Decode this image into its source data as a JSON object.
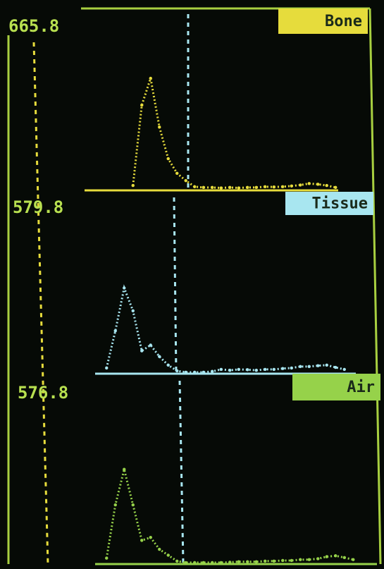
{
  "chart_data": [
    {
      "type": "line",
      "title": "Bone",
      "color": "#e6dc3c",
      "ylim": [
        0,
        665.8
      ],
      "yticks": [
        665.8
      ],
      "categories": [
        null,
        null,
        null,
        null,
        null,
        null,
        null,
        null,
        null,
        null,
        null,
        null,
        null,
        null,
        null,
        null,
        null,
        null,
        null,
        null,
        null,
        null,
        null,
        null,
        null,
        null,
        null,
        null,
        null,
        null,
        null,
        null
      ],
      "values": [
        null,
        null,
        null,
        null,
        null,
        20,
        350,
        460,
        260,
        130,
        70,
        40,
        15,
        12,
        12,
        10,
        12,
        10,
        12,
        12,
        15,
        14,
        15,
        18,
        22,
        28,
        25,
        20,
        12,
        null,
        null,
        null
      ]
    },
    {
      "type": "line",
      "title": "Tissue",
      "color": "#a8e6f0",
      "ylim": [
        0,
        579.8
      ],
      "yticks": [
        579.8
      ],
      "categories": [
        null,
        null,
        null,
        null,
        null,
        null,
        null,
        null,
        null,
        null,
        null,
        null,
        null,
        null,
        null,
        null,
        null,
        null,
        null,
        null,
        null,
        null,
        null,
        null,
        null,
        null,
        null,
        null,
        null,
        null,
        null,
        null
      ],
      "values": [
        null,
        null,
        20,
        150,
        300,
        220,
        80,
        100,
        60,
        30,
        10,
        5,
        5,
        5,
        8,
        15,
        12,
        15,
        14,
        12,
        15,
        15,
        18,
        20,
        25,
        25,
        28,
        30,
        22,
        15,
        null,
        null
      ]
    },
    {
      "type": "line",
      "title": "Air",
      "color": "#96d24a",
      "ylim": [
        0,
        576.8
      ],
      "yticks": [
        576.8
      ],
      "categories": [
        null,
        null,
        null,
        null,
        null,
        null,
        null,
        null,
        null,
        null,
        null,
        null,
        null,
        null,
        null,
        null,
        null,
        null,
        null,
        null,
        null,
        null,
        null,
        null,
        null,
        null,
        null,
        null,
        null,
        null,
        null,
        null
      ],
      "values": [
        null,
        null,
        20,
        200,
        320,
        200,
        80,
        90,
        50,
        30,
        10,
        5,
        5,
        5,
        5,
        5,
        6,
        8,
        8,
        8,
        10,
        10,
        12,
        12,
        15,
        15,
        18,
        25,
        28,
        22,
        15,
        null
      ]
    }
  ]
}
